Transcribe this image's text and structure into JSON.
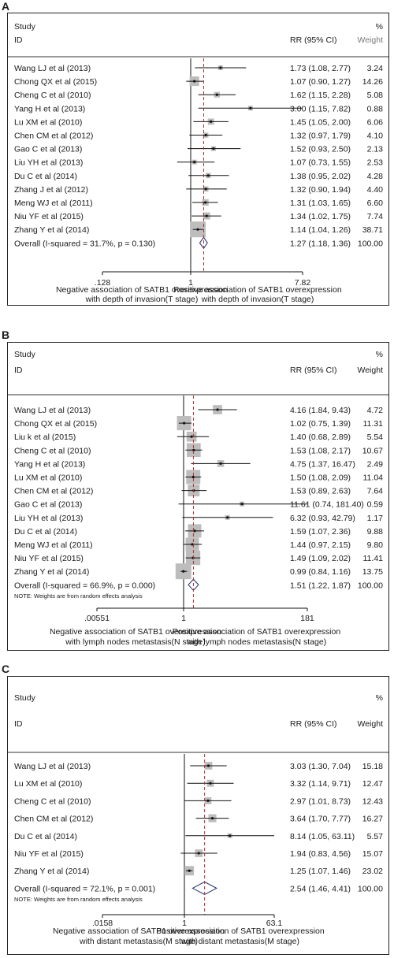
{
  "chart_data": [
    {
      "panel": "A",
      "type": "forest",
      "header": {
        "study": "Study",
        "id": "ID",
        "rr": "RR (95% CI)",
        "pct": "%",
        "weight": "Weight"
      },
      "axis": {
        "ticks": [
          {
            "value": 0.128,
            "label": ".128"
          },
          {
            "value": 1,
            "label": "1"
          },
          {
            "value": 7.82,
            "label": "7.82"
          }
        ],
        "scale": "log",
        "range": [
          0.128,
          7.82
        ]
      },
      "left_label": [
        "Negative association of SATB1 overexpression",
        "with depth of invasion(T stage)"
      ],
      "right_label": [
        "Positive association of SATB1 overexpression",
        "with depth of invasion(T stage)"
      ],
      "note": "",
      "studies": [
        {
          "name": "Wang LJ et al (2013)",
          "rr": 1.73,
          "lo": 1.08,
          "hi": 2.77,
          "ci_text": "1.73 (1.08, 2.77)",
          "weight": "3.24"
        },
        {
          "name": "Chong QX et al  (2015)",
          "rr": 1.07,
          "lo": 0.9,
          "hi": 1.27,
          "ci_text": "1.07 (0.90, 1.27)",
          "weight": "14.26"
        },
        {
          "name": "Cheng C et al (2010)",
          "rr": 1.62,
          "lo": 1.15,
          "hi": 2.28,
          "ci_text": "1.62 (1.15, 2.28)",
          "weight": "5.08"
        },
        {
          "name": "Yang H et al (2013)",
          "rr": 3.0,
          "lo": 1.15,
          "hi": 7.82,
          "ci_text": "3.00 (1.15, 7.82)",
          "weight": "0.88"
        },
        {
          "name": "Lu XM et al (2010)",
          "rr": 1.45,
          "lo": 1.05,
          "hi": 2.0,
          "ci_text": "1.45 (1.05, 2.00)",
          "weight": "6.06"
        },
        {
          "name": "Chen CM et al (2012)",
          "rr": 1.32,
          "lo": 0.97,
          "hi": 1.79,
          "ci_text": "1.32 (0.97, 1.79)",
          "weight": "4.10"
        },
        {
          "name": "Gao C et al (2013)",
          "rr": 1.52,
          "lo": 0.93,
          "hi": 2.5,
          "ci_text": "1.52 (0.93, 2.50)",
          "weight": "2.13"
        },
        {
          "name": "Liu YH et al (2013)",
          "rr": 1.07,
          "lo": 0.73,
          "hi": 1.55,
          "ci_text": "1.07 (0.73, 1.55)",
          "weight": "2.53"
        },
        {
          "name": "Du C et al (2014)",
          "rr": 1.38,
          "lo": 0.95,
          "hi": 2.02,
          "ci_text": "1.38 (0.95, 2.02)",
          "weight": "4.28"
        },
        {
          "name": "Zhang J et al  (2012)",
          "rr": 1.32,
          "lo": 0.9,
          "hi": 1.94,
          "ci_text": "1.32 (0.90, 1.94)",
          "weight": "4.40"
        },
        {
          "name": "Meng WJ et al (2011)",
          "rr": 1.31,
          "lo": 1.03,
          "hi": 1.65,
          "ci_text": "1.31 (1.03, 1.65)",
          "weight": "6.60"
        },
        {
          "name": "Niu YF et al  (2015)",
          "rr": 1.34,
          "lo": 1.02,
          "hi": 1.75,
          "ci_text": "1.34 (1.02, 1.75)",
          "weight": "7.74"
        },
        {
          "name": "Zhang Y et al (2014)",
          "rr": 1.14,
          "lo": 1.04,
          "hi": 1.26,
          "ci_text": "1.14 (1.04, 1.26)",
          "weight": "38.71"
        }
      ],
      "overall": {
        "name": "Overall  (I-squared = 31.7%, p = 0.130)",
        "rr": 1.27,
        "lo": 1.18,
        "hi": 1.36,
        "ci_text": "1.27 (1.18, 1.36)",
        "weight": "100.00"
      }
    },
    {
      "panel": "B",
      "type": "forest",
      "header": {
        "study": "Study",
        "id": "ID",
        "rr": "RR (95% CI)",
        "pct": "%",
        "weight": "Weight"
      },
      "axis": {
        "ticks": [
          {
            "value": 0.00551,
            "label": ".00551"
          },
          {
            "value": 1,
            "label": "1"
          },
          {
            "value": 181,
            "label": "181"
          }
        ],
        "scale": "log",
        "range": [
          0.00551,
          181
        ]
      },
      "left_label": [
        "Negative association of SATB1 overexpression",
        "with  lymph nodes metastasis(N stage)"
      ],
      "right_label": [
        "Positive association of SATB1 overexpression",
        "with  lymph nodes metastasis(N stage)"
      ],
      "note": "NOTE: Weights are from random effects analysis",
      "studies": [
        {
          "name": "Wang LJ et al (2013)",
          "rr": 4.16,
          "lo": 1.84,
          "hi": 9.43,
          "ci_text": "4.16 (1.84, 9.43)",
          "weight": "4.72"
        },
        {
          "name": "Chong QX et al  (2015)",
          "rr": 1.02,
          "lo": 0.75,
          "hi": 1.39,
          "ci_text": "1.02 (0.75, 1.39)",
          "weight": "11.31"
        },
        {
          "name": "Liu k et al (2015)",
          "rr": 1.4,
          "lo": 0.68,
          "hi": 2.89,
          "ci_text": "1.40 (0.68, 2.89)",
          "weight": "5.54"
        },
        {
          "name": "Cheng C et al (2010)",
          "rr": 1.53,
          "lo": 1.08,
          "hi": 2.17,
          "ci_text": "1.53 (1.08, 2.17)",
          "weight": "10.67"
        },
        {
          "name": "Yang H et al (2013)",
          "rr": 4.75,
          "lo": 1.37,
          "hi": 16.47,
          "ci_text": "4.75 (1.37, 16.47)",
          "weight": "2.49"
        },
        {
          "name": "Lu XM et al (2010)",
          "rr": 1.5,
          "lo": 1.08,
          "hi": 2.09,
          "ci_text": "1.50 (1.08, 2.09)",
          "weight": "11.04"
        },
        {
          "name": "Chen CM et al (2012)",
          "rr": 1.53,
          "lo": 0.89,
          "hi": 2.63,
          "ci_text": "1.53 (0.89, 2.63)",
          "weight": "7.64"
        },
        {
          "name": "Gao C et al (2013)",
          "rr": 11.61,
          "lo": 0.74,
          "hi": 181.4,
          "ci_text": "11.61 (0.74, 181.40)",
          "weight": "0.59"
        },
        {
          "name": "Liu YH et al (2013)",
          "rr": 6.32,
          "lo": 0.93,
          "hi": 42.79,
          "ci_text": "6.32 (0.93, 42.79)",
          "weight": "1.17"
        },
        {
          "name": "Du C et al (2014)",
          "rr": 1.59,
          "lo": 1.07,
          "hi": 2.36,
          "ci_text": "1.59 (1.07, 2.36)",
          "weight": "9.88"
        },
        {
          "name": "Meng WJ et al (2011)",
          "rr": 1.44,
          "lo": 0.97,
          "hi": 2.15,
          "ci_text": "1.44 (0.97, 2.15)",
          "weight": "9.80"
        },
        {
          "name": "Niu YF et al  (2015)",
          "rr": 1.49,
          "lo": 1.09,
          "hi": 2.02,
          "ci_text": "1.49 (1.09, 2.02)",
          "weight": "11.41"
        },
        {
          "name": "Zhang Y et al (2014)",
          "rr": 0.99,
          "lo": 0.84,
          "hi": 1.16,
          "ci_text": "0.99 (0.84, 1.16)",
          "weight": "13.75"
        }
      ],
      "overall": {
        "name": "Overall  (I-squared = 66.9%, p = 0.000)",
        "rr": 1.51,
        "lo": 1.22,
        "hi": 1.87,
        "ci_text": "1.51 (1.22, 1.87)",
        "weight": "100.00"
      }
    },
    {
      "panel": "C",
      "type": "forest",
      "header": {
        "study": "Study",
        "id": "ID",
        "rr": "RR (95% CI)",
        "pct": "%",
        "weight": "Weight"
      },
      "axis": {
        "ticks": [
          {
            "value": 0.0158,
            "label": ".0158"
          },
          {
            "value": 1,
            "label": "1"
          },
          {
            "value": 63.1,
            "label": "63.1"
          }
        ],
        "scale": "log",
        "range": [
          0.0158,
          63.1
        ]
      },
      "left_label": [
        "Negative association of SATB1 overexpression",
        "with  distant metastasis(M stage)"
      ],
      "right_label": [
        "Positive association of SATB1 overexpression",
        "with distant metastasis(M stage)"
      ],
      "note": "NOTE: Weights are from random effects analysis",
      "studies": [
        {
          "name": "Wang LJ et al (2013)",
          "rr": 3.03,
          "lo": 1.3,
          "hi": 7.04,
          "ci_text": "3.03 (1.30, 7.04)",
          "weight": "15.18"
        },
        {
          "name": "Lu XM et al (2010)",
          "rr": 3.32,
          "lo": 1.14,
          "hi": 9.71,
          "ci_text": "3.32 (1.14, 9.71)",
          "weight": "12.47"
        },
        {
          "name": "Cheng C et al (2010)",
          "rr": 2.97,
          "lo": 1.01,
          "hi": 8.73,
          "ci_text": "2.97 (1.01, 8.73)",
          "weight": "12.43"
        },
        {
          "name": "Chen CM et al (2012)",
          "rr": 3.64,
          "lo": 1.7,
          "hi": 7.77,
          "ci_text": "3.64 (1.70, 7.77)",
          "weight": "16.27"
        },
        {
          "name": "Du C et al (2014)",
          "rr": 8.14,
          "lo": 1.05,
          "hi": 63.11,
          "ci_text": "8.14 (1.05, 63.11)",
          "weight": "5.57"
        },
        {
          "name": "Niu YF et al  (2015)",
          "rr": 1.94,
          "lo": 0.83,
          "hi": 4.56,
          "ci_text": "1.94 (0.83, 4.56)",
          "weight": "15.07"
        },
        {
          "name": "Zhang Y et al (2014)",
          "rr": 1.25,
          "lo": 1.07,
          "hi": 1.46,
          "ci_text": "1.25 (1.07, 1.46)",
          "weight": "23.02"
        }
      ],
      "overall": {
        "name": "Overall  (I-squared = 72.1%, p = 0.001)",
        "rr": 2.54,
        "lo": 1.46,
        "hi": 4.41,
        "ci_text": "2.54 (1.46, 4.41)",
        "weight": "100.00"
      }
    }
  ]
}
